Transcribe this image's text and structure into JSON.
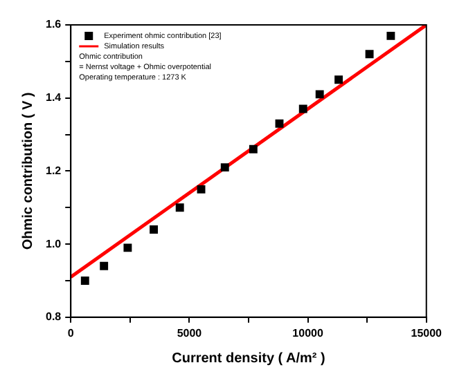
{
  "chart_data": {
    "type": "scatter",
    "xlabel": "Current density ( A/m² )",
    "ylabel": "Ohmic contribution ( V )",
    "xlim": [
      0,
      15000
    ],
    "ylim": [
      0.8,
      1.6
    ],
    "xticks": [
      0,
      {
        "value": 2500,
        "label": null
      },
      5000,
      {
        "value": 7500,
        "label": null
      },
      10000,
      {
        "value": 12500,
        "label": null
      },
      15000
    ],
    "yticks": [
      0.8,
      {
        "value": 0.9,
        "label": null
      },
      {
        "value": 1,
        "label": "1.0"
      },
      {
        "value": 1.1,
        "label": null
      },
      1.2,
      {
        "value": 1.3,
        "label": null
      },
      1.4,
      {
        "value": 1.5,
        "label": null
      },
      1.6
    ],
    "grid": false,
    "legend": "top left",
    "series": [
      {
        "name": "Experiment ohmic contribution [23]",
        "marker": "square",
        "color": "#000000",
        "x": [
          600,
          1400,
          2400,
          3500,
          4600,
          5500,
          6500,
          7700,
          8800,
          9800,
          10500,
          11300,
          12600,
          13500
        ],
        "values": [
          0.9,
          0.94,
          0.99,
          1.04,
          1.1,
          1.15,
          1.21,
          1.26,
          1.33,
          1.37,
          1.41,
          1.45,
          1.52,
          1.57
        ]
      },
      {
        "name": "Simulation results",
        "type": "line",
        "marker": "none",
        "line_style": "solid",
        "color": "#ff0000",
        "x": [
          0,
          15000
        ],
        "values": [
          0.91,
          1.6
        ]
      }
    ],
    "annotations": [
      "Ohmic contribution",
      "= Nernst voltage + Ohmic overpotential",
      "Operating temperature : 1273 K"
    ]
  }
}
